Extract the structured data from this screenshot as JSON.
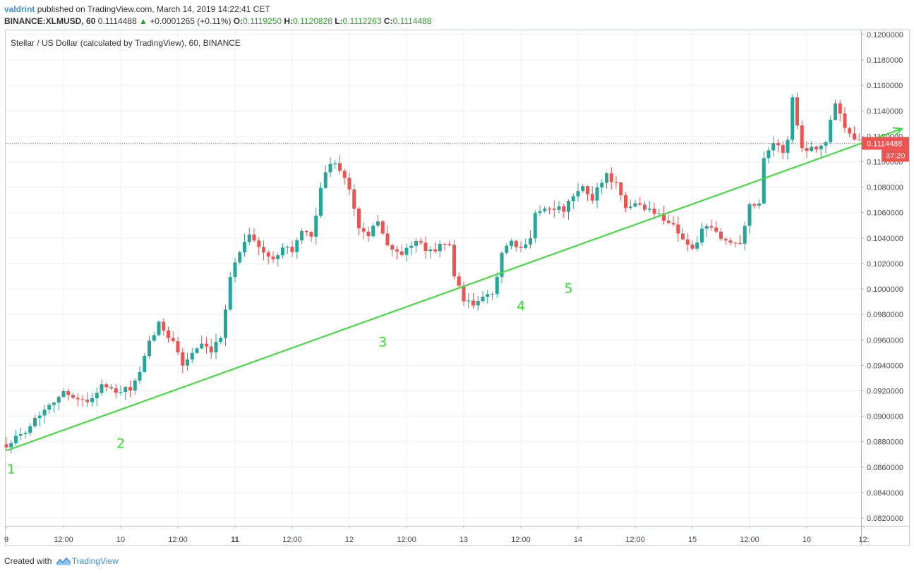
{
  "header": {
    "author": "valdrint",
    "published_text": "published on TradingView.com, March 14, 2019 14:22:41 CET",
    "symbol": "BINANCE:XLMUSD, 60",
    "last": "0.1114488",
    "arrow": "▲",
    "change": "+0.0001265 (+0.11%)",
    "open_label": "O:",
    "open": "0.1119250",
    "high_label": "H:",
    "high": "0.1120828",
    "low_label": "L:",
    "low": "0.1112263",
    "close_label": "C:",
    "close": "0.1114488"
  },
  "footer": {
    "created_with": "Created with",
    "brand": "TradingView"
  },
  "colors": {
    "up": "#26a69a",
    "down": "#ef5350",
    "trendline": "#33e033",
    "wave_label": "#33e033",
    "price_line": "#ef5350",
    "grid": "#eef1f5",
    "axis_text": "#4a4a4a"
  },
  "chart_data": {
    "type": "candlestick",
    "title": "Stellar / US Dollar (calculated by TradingView), 60, BINANCE",
    "timeframe": "60",
    "x_tick_labels": [
      "9",
      "12:00",
      "10",
      "12:00",
      "11",
      "12:00",
      "12",
      "12:00",
      "13",
      "12:00",
      "14",
      "12:00",
      "15",
      "12:00",
      "16",
      "12:"
    ],
    "y_tick_labels": [
      "0.1200000",
      "0.1180000",
      "0.1160000",
      "0.1140000",
      "0.1120000",
      "0.1100000",
      "0.1080000",
      "0.1060000",
      "0.1040000",
      "0.1020000",
      "0.1000000",
      "0.0980000",
      "0.0960000",
      "0.0940000",
      "0.0920000",
      "0.0900000",
      "0.0880000",
      "0.0860000",
      "0.0840000",
      "0.0820000"
    ],
    "ylim": [
      0.0809,
      0.1208
    ],
    "xlim_hours": [
      0,
      180
    ],
    "last_price_label": "0.1114488",
    "countdown_label": "37:20",
    "anchors": [
      [
        0,
        0.0878
      ],
      [
        3,
        0.0885
      ],
      [
        6,
        0.0898
      ],
      [
        9,
        0.091
      ],
      [
        12,
        0.0918
      ],
      [
        15,
        0.0915
      ],
      [
        17,
        0.091
      ],
      [
        20,
        0.0925
      ],
      [
        23,
        0.0918
      ],
      [
        26,
        0.0922
      ],
      [
        28,
        0.0933
      ],
      [
        30,
        0.0958
      ],
      [
        32,
        0.0972
      ],
      [
        35,
        0.096
      ],
      [
        37,
        0.094
      ],
      [
        39,
        0.095
      ],
      [
        41,
        0.0955
      ],
      [
        43,
        0.095
      ],
      [
        45,
        0.0962
      ],
      [
        47,
        0.101
      ],
      [
        49,
        0.103
      ],
      [
        51,
        0.1045
      ],
      [
        53,
        0.1032
      ],
      [
        56,
        0.1022
      ],
      [
        58,
        0.1035
      ],
      [
        60,
        0.103
      ],
      [
        62,
        0.1045
      ],
      [
        64,
        0.104
      ],
      [
        66,
        0.108
      ],
      [
        68,
        0.11
      ],
      [
        70,
        0.1095
      ],
      [
        72,
        0.1078
      ],
      [
        74,
        0.1048
      ],
      [
        76,
        0.104
      ],
      [
        78,
        0.1055
      ],
      [
        80,
        0.1034
      ],
      [
        82,
        0.1028
      ],
      [
        84,
        0.103
      ],
      [
        86,
        0.1038
      ],
      [
        88,
        0.103
      ],
      [
        90,
        0.1032
      ],
      [
        93,
        0.1036
      ],
      [
        94,
        0.101
      ],
      [
        96,
        0.099
      ],
      [
        98,
        0.0988
      ],
      [
        100,
        0.0992
      ],
      [
        102,
        0.0996
      ],
      [
        104,
        0.1028
      ],
      [
        106,
        0.1036
      ],
      [
        108,
        0.103
      ],
      [
        110,
        0.1042
      ],
      [
        111,
        0.106
      ],
      [
        114,
        0.1065
      ],
      [
        117,
        0.1062
      ],
      [
        119,
        0.1072
      ],
      [
        121,
        0.108
      ],
      [
        123,
        0.107
      ],
      [
        124,
        0.108
      ],
      [
        126,
        0.109
      ],
      [
        128,
        0.1082
      ],
      [
        130,
        0.1062
      ],
      [
        132,
        0.1068
      ],
      [
        134,
        0.1064
      ],
      [
        136,
        0.106
      ],
      [
        138,
        0.1056
      ],
      [
        140,
        0.105
      ],
      [
        142,
        0.104
      ],
      [
        144,
        0.103
      ],
      [
        146,
        0.1046
      ],
      [
        148,
        0.1048
      ],
      [
        150,
        0.104
      ],
      [
        152,
        0.1036
      ],
      [
        154,
        0.1038
      ],
      [
        156,
        0.1065
      ],
      [
        158,
        0.1068
      ],
      [
        159,
        0.1105
      ],
      [
        161,
        0.1115
      ],
      [
        163,
        0.1108
      ],
      [
        164,
        0.1118
      ],
      [
        165,
        0.115
      ],
      [
        167,
        0.111
      ],
      [
        170,
        0.1112
      ],
      [
        172,
        0.1115
      ],
      [
        174,
        0.1148
      ],
      [
        176,
        0.1128
      ],
      [
        178,
        0.112
      ],
      [
        180,
        0.1114
      ]
    ],
    "trendline": {
      "from": [
        0,
        0.0873
      ],
      "to": [
        188,
        0.1126
      ],
      "arrow": true
    },
    "wave_labels": [
      {
        "text": "1",
        "x": 1,
        "y": 0.0855
      },
      {
        "text": "2",
        "x": 24,
        "y": 0.0875
      },
      {
        "text": "3",
        "x": 79,
        "y": 0.0955
      },
      {
        "text": "4",
        "x": 108,
        "y": 0.0983
      },
      {
        "text": "5",
        "x": 118,
        "y": 0.0997
      }
    ]
  }
}
